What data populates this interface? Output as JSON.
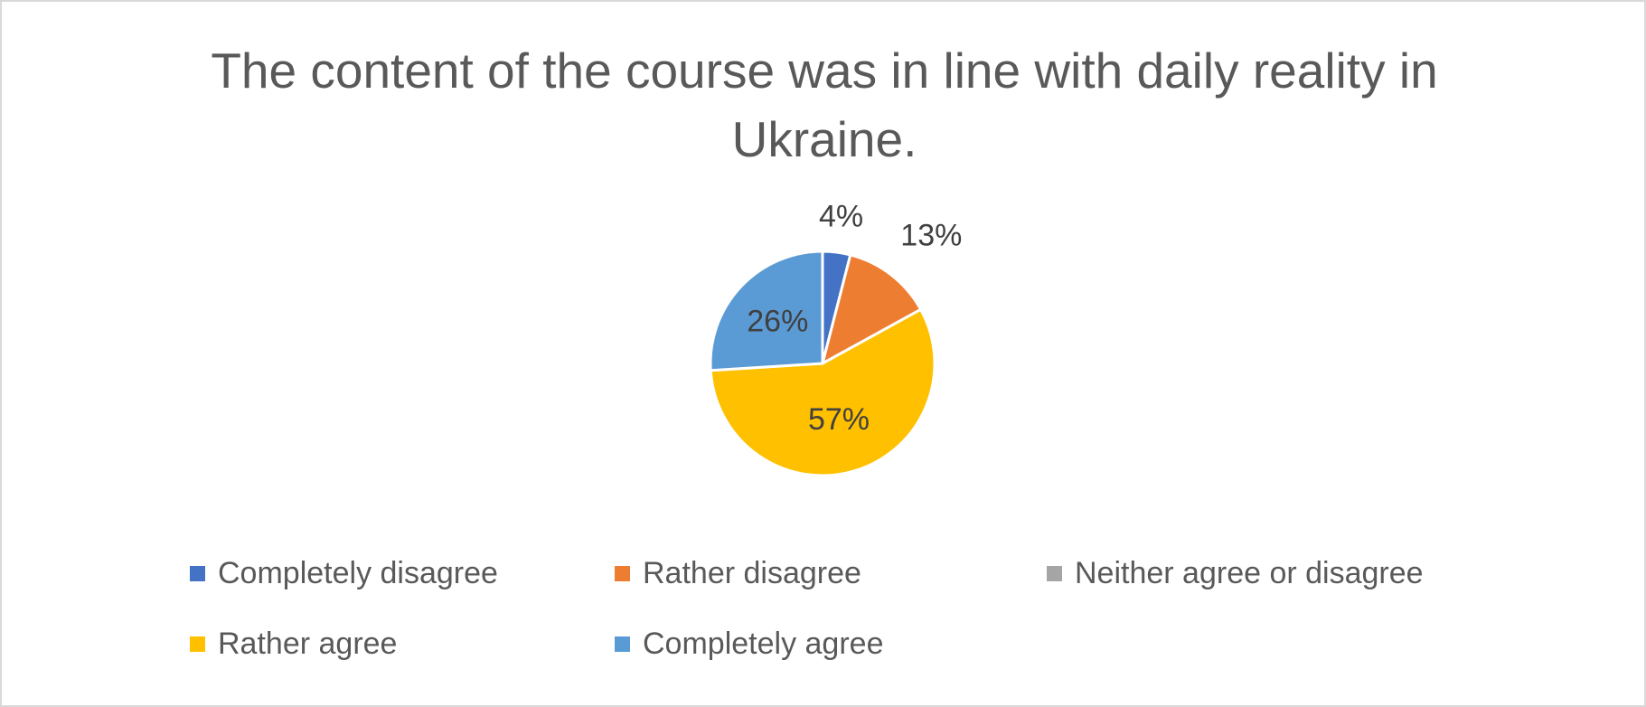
{
  "chart_data": {
    "type": "pie",
    "title": "The content of the course was in line with daily reality in Ukraine.",
    "categories": [
      "Completely disagree",
      "Rather disagree",
      "Neither agree or disagree",
      "Rather agree",
      "Completely agree"
    ],
    "values": [
      4,
      13,
      0,
      57,
      26
    ],
    "data_labels": [
      "4%",
      "13%",
      "",
      "57%",
      "26%"
    ],
    "colors": [
      "#4472c4",
      "#ed7d31",
      "#a5a5a5",
      "#ffc000",
      "#5b9bd5"
    ],
    "legend_position": "bottom"
  }
}
